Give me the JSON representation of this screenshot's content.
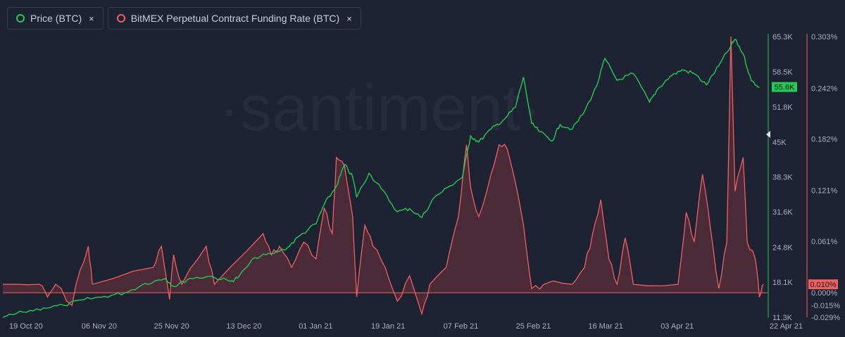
{
  "legend": {
    "price_label": "Price (BTC)",
    "funding_label": "BitMEX Perpetual Contract Funding Rate (BTC)",
    "close_glyph": "×"
  },
  "watermark": "·santiment·",
  "colors": {
    "background": "#1e2333",
    "price": "#26c953",
    "funding": "#f0605f",
    "funding_fill": "#5a2f3a",
    "price_badge": "#26c953",
    "funding_badge": "#f0605f"
  },
  "current": {
    "price_badge": "55.6K",
    "funding_badge": "0.010%"
  },
  "chart_data": {
    "type": "line",
    "x_ticks": [
      "19 Oct 20",
      "06 Nov 20",
      "25 Nov 20",
      "13 Dec 20",
      "01 Jan 21",
      "19 Jan 21",
      "07 Feb 21",
      "25 Feb 21",
      "16 Mar 21",
      "03 Apr 21",
      "22 Apr 21"
    ],
    "x_range": [
      "2020-10-16",
      "2021-04-22"
    ],
    "price_axis": {
      "ticks": [
        "65.3K",
        "58.5K",
        "51.8K",
        "45K",
        "38.3K",
        "31.6K",
        "24.8K",
        "18.1K",
        "11.3K"
      ],
      "ylim": [
        11300,
        65300
      ]
    },
    "funding_axis": {
      "ticks": [
        "0.303%",
        "0.242%",
        "0.182%",
        "0.121%",
        "0.061%",
        "0.000%",
        "-0.015%",
        "-0.029%"
      ],
      "ylim": [
        -0.029,
        0.303
      ]
    },
    "series": [
      {
        "name": "Price (BTC)",
        "axis": "left",
        "points": [
          [
            "2020-10-16",
            11300
          ],
          [
            "2020-10-21",
            12300
          ],
          [
            "2020-10-26",
            13100
          ],
          [
            "2020-10-31",
            13600
          ],
          [
            "2020-11-05",
            14700
          ],
          [
            "2020-11-10",
            15300
          ],
          [
            "2020-11-15",
            16000
          ],
          [
            "2020-11-20",
            17800
          ],
          [
            "2020-11-25",
            18800
          ],
          [
            "2020-11-27",
            17200
          ],
          [
            "2020-12-01",
            18800
          ],
          [
            "2020-12-06",
            19200
          ],
          [
            "2020-12-11",
            18200
          ],
          [
            "2020-12-13",
            19100
          ],
          [
            "2020-12-17",
            22800
          ],
          [
            "2020-12-21",
            23500
          ],
          [
            "2020-12-25",
            24700
          ],
          [
            "2020-12-28",
            27000
          ],
          [
            "2021-01-01",
            29300
          ],
          [
            "2021-01-03",
            33000
          ],
          [
            "2021-01-06",
            36500
          ],
          [
            "2021-01-08",
            40700
          ],
          [
            "2021-01-10",
            38300
          ],
          [
            "2021-01-11",
            34500
          ],
          [
            "2021-01-14",
            39000
          ],
          [
            "2021-01-17",
            36100
          ],
          [
            "2021-01-21",
            31600
          ],
          [
            "2021-01-24",
            32200
          ],
          [
            "2021-01-27",
            30500
          ],
          [
            "2021-01-30",
            34300
          ],
          [
            "2021-02-03",
            36600
          ],
          [
            "2021-02-06",
            38300
          ],
          [
            "2021-02-08",
            46200
          ],
          [
            "2021-02-10",
            45000
          ],
          [
            "2021-02-13",
            47500
          ],
          [
            "2021-02-16",
            49200
          ],
          [
            "2021-02-19",
            51700
          ],
          [
            "2021-02-21",
            57500
          ],
          [
            "2021-02-23",
            48600
          ],
          [
            "2021-02-25",
            47000
          ],
          [
            "2021-02-28",
            45200
          ],
          [
            "2021-03-02",
            48400
          ],
          [
            "2021-03-05",
            47500
          ],
          [
            "2021-03-08",
            50900
          ],
          [
            "2021-03-11",
            55800
          ],
          [
            "2021-03-13",
            61100
          ],
          [
            "2021-03-16",
            56900
          ],
          [
            "2021-03-20",
            58200
          ],
          [
            "2021-03-24",
            52700
          ],
          [
            "2021-03-26",
            55200
          ],
          [
            "2021-03-29",
            57600
          ],
          [
            "2021-04-01",
            58900
          ],
          [
            "2021-04-04",
            58200
          ],
          [
            "2021-04-07",
            56000
          ],
          [
            "2021-04-10",
            59700
          ],
          [
            "2021-04-13",
            63500
          ],
          [
            "2021-04-14",
            64800
          ],
          [
            "2021-04-16",
            62000
          ],
          [
            "2021-04-18",
            56800
          ],
          [
            "2021-04-20",
            55600
          ]
        ]
      },
      {
        "name": "BitMEX Perpetual Contract Funding Rate (BTC)",
        "axis": "right",
        "points": [
          [
            "2020-10-16",
            0.01
          ],
          [
            "2020-10-25",
            0.01
          ],
          [
            "2020-10-27",
            -0.005
          ],
          [
            "2020-10-29",
            0.01
          ],
          [
            "2020-11-02",
            -0.015
          ],
          [
            "2020-11-03",
            0.01
          ],
          [
            "2020-11-06",
            0.055
          ],
          [
            "2020-11-07",
            0.01
          ],
          [
            "2020-11-22",
            0.03
          ],
          [
            "2020-11-24",
            0.055
          ],
          [
            "2020-11-26",
            -0.008
          ],
          [
            "2020-11-27",
            0.045
          ],
          [
            "2020-11-29",
            0.01
          ],
          [
            "2020-12-05",
            0.055
          ],
          [
            "2020-12-07",
            0.01
          ],
          [
            "2020-12-19",
            0.07
          ],
          [
            "2020-12-21",
            0.045
          ],
          [
            "2020-12-23",
            0.055
          ],
          [
            "2020-12-26",
            0.03
          ],
          [
            "2020-12-29",
            0.06
          ],
          [
            "2021-01-01",
            0.04
          ],
          [
            "2021-01-03",
            0.1
          ],
          [
            "2021-01-05",
            0.07
          ],
          [
            "2021-01-06",
            0.16
          ],
          [
            "2021-01-08",
            0.15
          ],
          [
            "2021-01-10",
            0.09
          ],
          [
            "2021-01-11",
            -0.005
          ],
          [
            "2021-01-13",
            0.08
          ],
          [
            "2021-01-15",
            0.055
          ],
          [
            "2021-01-18",
            0.03
          ],
          [
            "2021-01-21",
            -0.01
          ],
          [
            "2021-01-24",
            0.02
          ],
          [
            "2021-01-27",
            -0.025
          ],
          [
            "2021-01-29",
            0.01
          ],
          [
            "2021-02-02",
            0.03
          ],
          [
            "2021-02-05",
            0.09
          ],
          [
            "2021-02-07",
            0.175
          ],
          [
            "2021-02-08",
            0.125
          ],
          [
            "2021-02-10",
            0.09
          ],
          [
            "2021-02-13",
            0.14
          ],
          [
            "2021-02-15",
            0.175
          ],
          [
            "2021-02-17",
            0.17
          ],
          [
            "2021-02-19",
            0.13
          ],
          [
            "2021-02-21",
            0.08
          ],
          [
            "2021-02-23",
            0.005
          ],
          [
            "2021-02-26",
            0.01
          ],
          [
            "2021-03-05",
            0.01
          ],
          [
            "2021-03-08",
            0.03
          ],
          [
            "2021-03-10",
            0.07
          ],
          [
            "2021-03-12",
            0.11
          ],
          [
            "2021-03-14",
            0.04
          ],
          [
            "2021-03-16",
            0.01
          ],
          [
            "2021-03-18",
            0.065
          ],
          [
            "2021-03-20",
            0.01
          ],
          [
            "2021-03-31",
            0.01
          ],
          [
            "2021-04-02",
            0.095
          ],
          [
            "2021-04-04",
            0.06
          ],
          [
            "2021-04-06",
            0.14
          ],
          [
            "2021-04-08",
            0.075
          ],
          [
            "2021-04-10",
            0.005
          ],
          [
            "2021-04-12",
            0.06
          ],
          [
            "2021-04-13",
            0.303
          ],
          [
            "2021-04-14",
            0.12
          ],
          [
            "2021-04-16",
            0.16
          ],
          [
            "2021-04-17",
            0.06
          ],
          [
            "2021-04-19",
            0.04
          ],
          [
            "2021-04-20",
            -0.005
          ],
          [
            "2021-04-21",
            0.01
          ]
        ]
      }
    ]
  }
}
